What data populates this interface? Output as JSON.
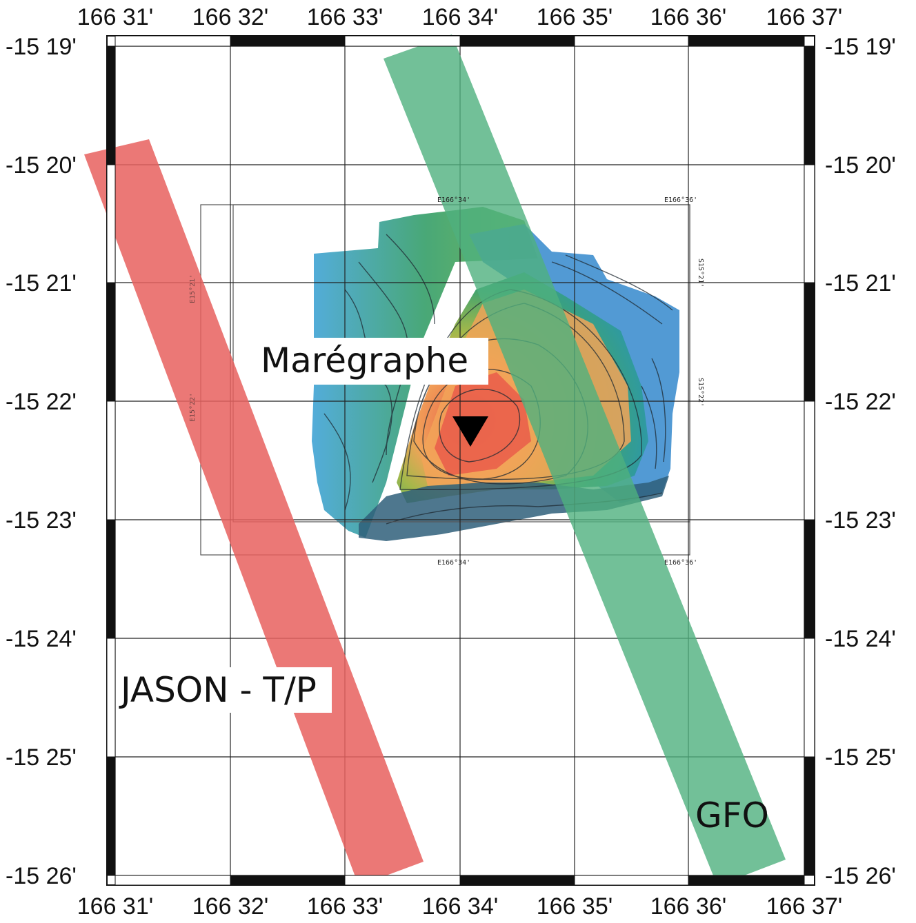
{
  "map": {
    "lon_labels": [
      "166 31'",
      "166 32'",
      "166 33'",
      "166 34'",
      "166 35'",
      "166 36'",
      "166 37'"
    ],
    "lat_labels": [
      "-15 19'",
      "-15 20'",
      "-15 21'",
      "-15 22'",
      "-15 23'",
      "-15 24'",
      "-15 25'",
      "-15 26'"
    ],
    "inset": {
      "top_labels": [
        "E166°34'",
        "E166°36'"
      ],
      "bottom_labels": [
        "E166°34'",
        "E166°36'"
      ],
      "right_labels": [
        "S15°21'",
        "S15°22'"
      ],
      "left_labels": [
        "E15°21'",
        "E15°22'"
      ]
    },
    "tracks": [
      {
        "label": "JASON - T/P",
        "color": "#e8605e"
      },
      {
        "label": "GFO",
        "color": "#4fb07e"
      }
    ],
    "marker_label": "Marégraphe",
    "marker_icon": "down-triangle-icon",
    "colors": {
      "frame": "#111111",
      "grid": "#222222",
      "bathy_deep": "#3f8fcf",
      "bathy_mid": "#3fa370",
      "bathy_shallow": "#f2a358",
      "bathy_top": "#e8584a"
    }
  }
}
